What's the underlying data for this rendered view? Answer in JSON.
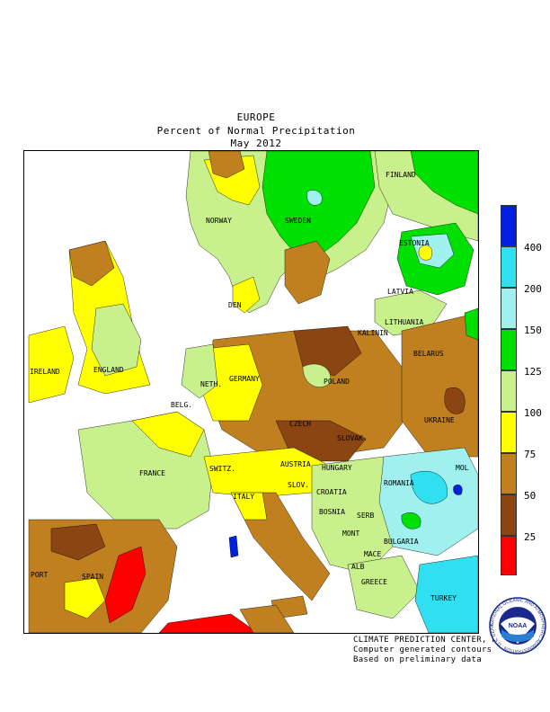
{
  "title": {
    "region": "EUROPE",
    "metric": "Percent of Normal Precipitation",
    "period": "May 2012"
  },
  "legend": {
    "labels": [
      "25",
      "50",
      "75",
      "100",
      "125",
      "150",
      "200",
      "400"
    ],
    "colors": {
      "lt25": "#ff0000",
      "25-50": "#8b4513",
      "50-75": "#c08020",
      "75-100": "#ffff00",
      "100-125": "#c8f08c",
      "125-150": "#00e000",
      "150-200": "#a0f0f0",
      "200-400": "#30e0f0",
      "gt400": "#0020e0"
    }
  },
  "countries": {
    "norway": "NORWAY",
    "sweden": "SWEDEN",
    "finland": "FINLAND",
    "estonia": "ESTONIA",
    "latvia": "LATVIA",
    "lithuania": "LITHUANIA",
    "kalinin": "KALININ",
    "belarus": "BELARUS",
    "ukraine": "UKRAINE",
    "mol": "MOL",
    "poland": "POLAND",
    "germany": "GERMANY",
    "den": "DEN",
    "neth": "NETH.",
    "belg": "BELG.",
    "czech": "CZECH",
    "slovak": "SLOVAK.",
    "austria": "AUSTRIA",
    "hungary": "HUNGARY",
    "romania": "ROMANIA",
    "slov": "SLOV.",
    "croatia": "CROATIA",
    "bosnia": "BOSNIA",
    "serb": "SERB",
    "mont": "MONT",
    "bulgaria": "BULGARIA",
    "mace": "MACE",
    "alb": "ALB",
    "greece": "GREECE",
    "turkey": "TURKEY",
    "switz": "SWITZ.",
    "italy": "ITALY",
    "france": "FRANCE",
    "england": "ENGLAND",
    "ireland": "IRELAND",
    "port": "PORT",
    "spain": "SPAIN"
  },
  "credits": {
    "line1": "CLIMATE PREDICTION CENTER, NOAA",
    "line2": "Computer generated contours",
    "line3": "Based on preliminary data"
  },
  "logo": {
    "center_text": "NOAA",
    "ring_text": "NATIONAL OCEANIC AND ATMOSPHERIC ADMINISTRATION · U.S. DEPARTMENT OF COMMERCE"
  }
}
